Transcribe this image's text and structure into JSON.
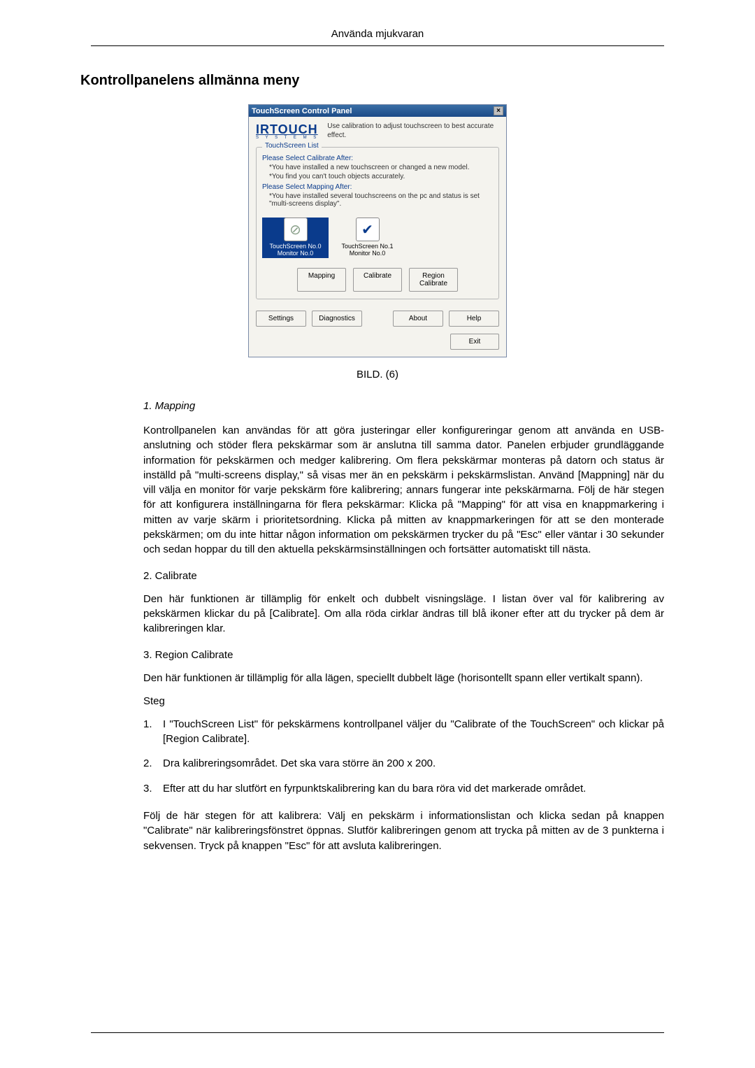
{
  "header": {
    "running_head": "Använda mjukvaran"
  },
  "heading": "Kontrollpanelens allmänna meny",
  "dialog": {
    "title": "TouchScreen Control Panel",
    "close_glyph": "×",
    "brand": "IRTOUCH",
    "brand_sub": "S Y S T E M S",
    "brand_desc": "Use calibration to adjust touchscreen to best accurate effect.",
    "group_label": "TouchScreen List",
    "line_calibrate": "Please Select Calibrate After:",
    "sub_cal_1": "*You have installed a new touchscreen or changed a new model.",
    "sub_cal_2": "*You find you can't touch objects accurately.",
    "line_mapping": "Please Select Mapping After:",
    "sub_map_1": "*You have installed several touchscreens on the pc and status is set \"multi-screens display\".",
    "ts0": {
      "icon": "⊘",
      "icon_color": "#8aa08a",
      "line1": "TouchScreen No.0",
      "line2": "Monitor    No.0"
    },
    "ts1": {
      "icon": "✔",
      "icon_color": "#0a3b8c",
      "line1": "TouchScreen No.1",
      "line2": "Monitor    No.0"
    },
    "btn_mapping": "Mapping",
    "btn_calibrate": "Calibrate",
    "btn_region": "Region\nCalibrate",
    "btn_settings": "Settings",
    "btn_diagnostics": "Diagnostics",
    "btn_about": "About",
    "btn_help": "Help",
    "btn_exit": "Exit"
  },
  "figure_caption": "BILD. (6)",
  "sections": {
    "mapping_title": "1. Mapping",
    "mapping_para": "Kontrollpanelen kan användas för att göra justeringar eller konfigureringar genom att använda en USB-anslutning och stöder flera pekskärmar som är anslutna till samma dator. Panelen erbjuder grundläggande information för pekskärmen och medger kalibrering. Om flera pekskärmar monteras på datorn och status är inställd på \"multi-screens display,\" så visas mer än en pekskärm i pekskärmslistan. Använd [Mappning] när du vill välja en monitor för varje pekskärm före kalibrering; annars fungerar inte pekskärmarna. Följ de här stegen för att konfigurera inställningarna för flera pekskärmar: Klicka på \"Mapping\" för att visa en knappmarkering i mitten av varje skärm i prioritetsordning. Klicka på mitten av knappmarkeringen för att se den monterade pekskärmen; om du inte hittar någon information om pekskärmen trycker du på \"Esc\" eller väntar i 30 sekunder och sedan hoppar du till den aktuella pekskärmsinställningen och fortsätter automatiskt till nästa.",
    "calibrate_title": "2. Calibrate",
    "calibrate_para": "Den här funktionen är tillämplig för enkelt och dubbelt visningsläge. I listan över val för kalibrering av pekskärmen klickar du på [Calibrate]. Om alla röda cirklar ändras till blå ikoner efter att du trycker på dem är kalibreringen klar.",
    "region_title": "3. Region Calibrate",
    "region_para": "Den här funktionen är tillämplig för alla lägen, speciellt dubbelt läge (horisontellt spann eller vertikalt spann).",
    "steps_label": "Steg",
    "steps": [
      "I \"TouchScreen List\" för pekskärmens kontrollpanel väljer du \"Calibrate of the TouchScreen\" och klickar på [Region Calibrate].",
      "Dra kalibreringsområdet. Det ska vara större än 200 x 200.",
      "Efter att du har slutfört en fyrpunktskalibrering kan du bara röra vid det markerade området."
    ],
    "closing_para": "Följ de här stegen för att kalibrera: Välj en pekskärm i informationslistan och klicka sedan på knappen \"Calibrate\" när kalibreringsfönstret öppnas. Slutför kalibreringen genom att trycka på mitten av de 3 punkterna i sekvensen. Tryck på knappen \"Esc\" för att avsluta kalibreringen."
  }
}
